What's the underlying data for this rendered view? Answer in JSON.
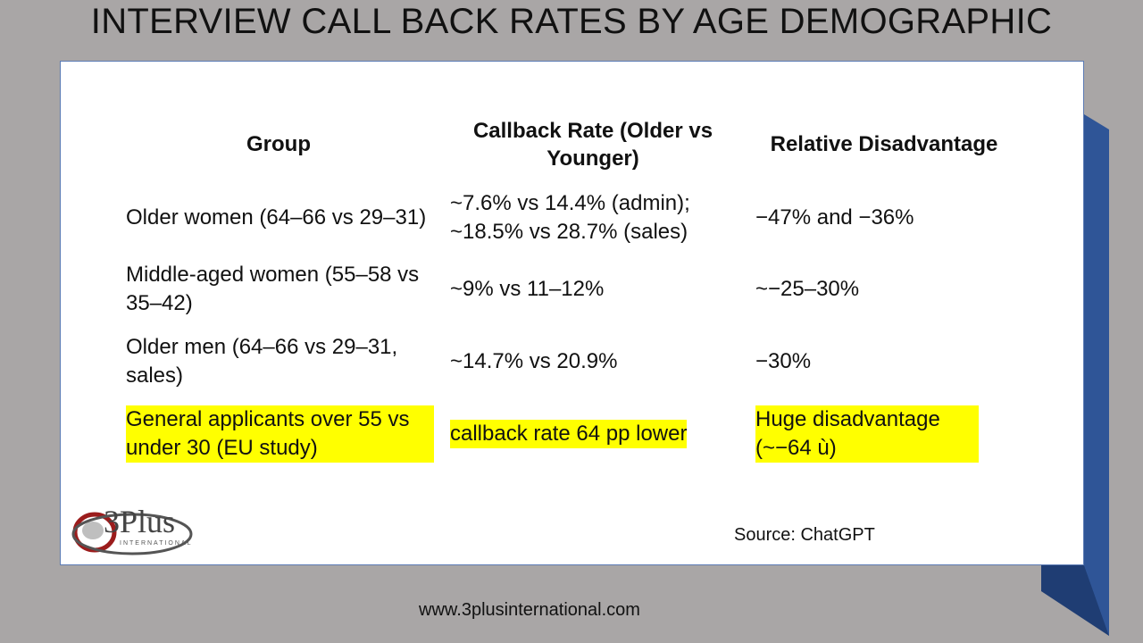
{
  "slide": {
    "title": "INTERVIEW CALL BACK RATES BY AGE DEMOGRAPHIC",
    "source": "Source: ChatGPT",
    "footer_url": "www.3plusinternational.com"
  },
  "logo": {
    "text": "3Plus",
    "subtext": "INTERNATIONAL"
  },
  "table": {
    "headers": [
      "Group",
      "Callback Rate (Older vs Younger)",
      "Relative Disadvantage"
    ],
    "rows": [
      {
        "group": "Older women (64–66 vs 29–31)",
        "rate": "~7.6% vs 14.4% (admin); ~18.5% vs 28.7% (sales)",
        "disadvantage": "−47% and −36%",
        "highlighted": false
      },
      {
        "group": "Middle-aged women (55–58 vs 35–42)",
        "rate": "~9% vs 11–12%",
        "disadvantage": "~−25–30%",
        "highlighted": false
      },
      {
        "group": "Older men (64–66 vs 29–31, sales)",
        "rate": "~14.7% vs 20.9%",
        "disadvantage": "−30%",
        "highlighted": false
      },
      {
        "group": "General applicants over 55 vs under 30 (EU study)",
        "rate": "callback rate 64 pp lower",
        "disadvantage": "Huge disadvantage (~−64 ù)",
        "highlighted": true
      }
    ]
  },
  "colors": {
    "background": "#a9a6a6",
    "accent_blue": "#2f5597",
    "highlight": "#ffff00",
    "card": "#ffffff"
  }
}
